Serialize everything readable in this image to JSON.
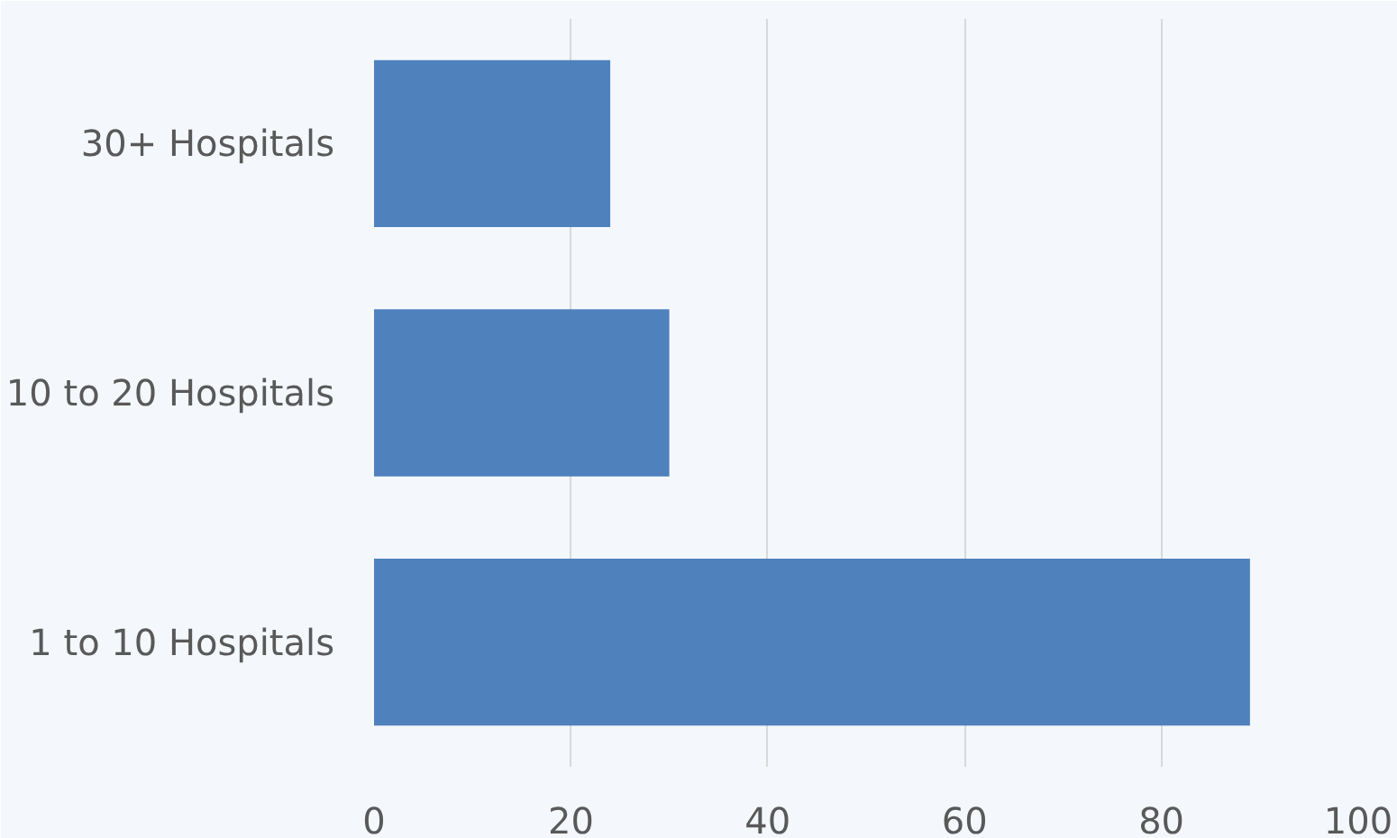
{
  "chart_data": {
    "type": "bar",
    "orientation": "horizontal",
    "categories": [
      "30+ Hospitals",
      "10 to 20 Hospitals",
      "1 to 10 Hospitals"
    ],
    "values": [
      24,
      30,
      89
    ],
    "color": "#4f81bd",
    "xlim": [
      0,
      100
    ],
    "xticks": [
      0,
      20,
      40,
      60,
      80,
      100
    ],
    "grid": "x"
  }
}
